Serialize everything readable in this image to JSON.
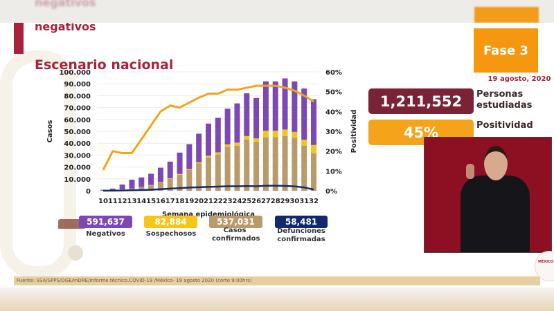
{
  "header": {
    "ghost_title": "negativos",
    "subtitle": "negativos",
    "title": "Escenario nacional",
    "phase_badge": "Fase 3",
    "date": "19 agosto, 2020"
  },
  "stats": [
    {
      "value": "1,211,552",
      "label": "Personas estudiadas",
      "color": "#7b2336"
    },
    {
      "value": "45%",
      "label": "Positividad",
      "color": "#f5a31a"
    }
  ],
  "legend": [
    {
      "value": "591,637",
      "label": "Negativos",
      "color": "#7b48b4"
    },
    {
      "value": "82,884",
      "label": "Sospechosos",
      "color": "#f5c518"
    },
    {
      "value": "537,031",
      "label": "Casos confirmados",
      "color": "#b99a6b"
    },
    {
      "value": "58,481",
      "label": "Defunciones confirmadas",
      "color": "#12296b"
    }
  ],
  "footer": {
    "source": "Fuente: SSA/SPPS/DGE/InDRE/Informe técnico.COVID-19 /México- 19 agosto 2020 (corte 9:00hrs)"
  },
  "logo": {
    "text": "MÉXICO"
  },
  "chart_data": {
    "type": "bar",
    "title": "Escenario nacional",
    "xlabel": "Semana epidemiológica",
    "ylabel": "Casos",
    "y2label": "Positividad",
    "ylim": [
      0,
      100000
    ],
    "y2lim": [
      0,
      60
    ],
    "yticks": [
      "0",
      "10.000",
      "20.000",
      "30.000",
      "40.000",
      "50.000",
      "60.000",
      "70.000",
      "80.000",
      "90.000",
      "100.000"
    ],
    "y2ticks": [
      "0%",
      "10%",
      "20%",
      "30%",
      "40%",
      "50%",
      "60%"
    ],
    "grid": true,
    "stacked": true,
    "categories": [
      "10",
      "11",
      "12",
      "13",
      "14",
      "15",
      "16",
      "17",
      "18",
      "19",
      "20",
      "21",
      "22",
      "23",
      "24",
      "25",
      "26",
      "27",
      "28",
      "29",
      "30",
      "31",
      "32"
    ],
    "series": [
      {
        "name": "Casos confirmados",
        "type": "bar",
        "color": "#b99a6b",
        "values": [
          100,
          400,
          1100,
          1700,
          3000,
          4500,
          7000,
          10000,
          13500,
          17500,
          23000,
          28000,
          30500,
          37000,
          38000,
          43000,
          41000,
          45000,
          45000,
          46000,
          44500,
          38000,
          31500
        ]
      },
      {
        "name": "Sospechosos",
        "type": "bar",
        "color": "#f5c518",
        "values": [
          0,
          0,
          100,
          100,
          200,
          300,
          400,
          500,
          600,
          700,
          1000,
          1500,
          1800,
          2000,
          2500,
          3000,
          3000,
          5500,
          5500,
          5500,
          5000,
          5000,
          7000
        ]
      },
      {
        "name": "Negativos",
        "type": "bar",
        "color": "#7b48b4",
        "values": [
          700,
          1400,
          4000,
          7500,
          8000,
          9500,
          12000,
          14000,
          18000,
          21000,
          24000,
          27000,
          29000,
          30000,
          33000,
          36000,
          34000,
          41500,
          41500,
          43000,
          42500,
          43000,
          38500
        ]
      },
      {
        "name": "Defunciones confirmadas",
        "type": "line",
        "color": "#12296b",
        "values": [
          50,
          100,
          200,
          400,
          600,
          900,
          1300,
          1800,
          2200,
          2700,
          3000,
          3300,
          3500,
          3800,
          3800,
          3900,
          3800,
          4200,
          4200,
          4100,
          3700,
          2800,
          1000
        ]
      },
      {
        "name": "Positividad (%)",
        "type": "line",
        "axis": "right",
        "color": "#f5a31a",
        "values": [
          10.5,
          20,
          19,
          19,
          26,
          33,
          40,
          43,
          42,
          44.5,
          47,
          49,
          49,
          51,
          51,
          52,
          53,
          53,
          53,
          52,
          50.5,
          48,
          45
        ]
      }
    ]
  }
}
